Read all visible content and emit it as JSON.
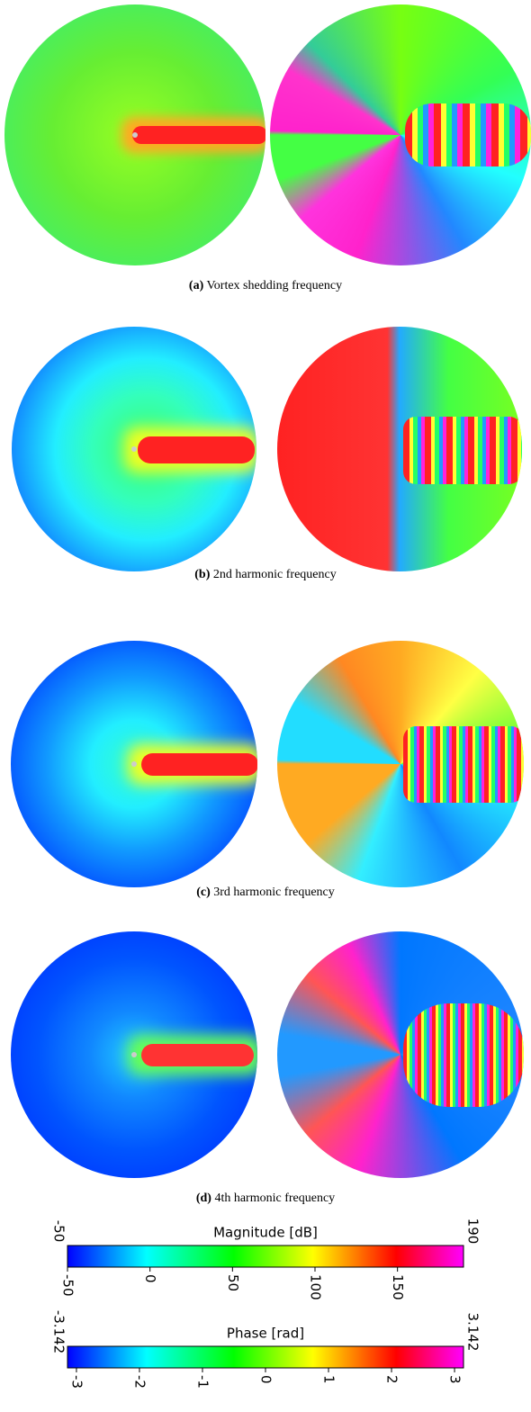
{
  "figure": {
    "panels": [
      {
        "label": "(a)",
        "caption": "Vortex shedding frequency"
      },
      {
        "label": "(b)",
        "caption": "2nd harmonic frequency"
      },
      {
        "label": "(c)",
        "caption": "3rd harmonic frequency"
      },
      {
        "label": "(d)",
        "caption": "4th harmonic frequency"
      }
    ],
    "colorbars": [
      {
        "title": "Magnitude [dB]",
        "range": [
          -50,
          190
        ],
        "ticks": [
          -50,
          0,
          50,
          100,
          150
        ]
      },
      {
        "title": "Phase [rad]",
        "range": [
          -3.142,
          3.142
        ],
        "ticks": [
          -3,
          -2,
          -1,
          0,
          1,
          2,
          3
        ]
      }
    ]
  }
}
